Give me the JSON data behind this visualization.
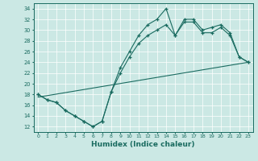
{
  "title": "",
  "xlabel": "Humidex (Indice chaleur)",
  "background_color": "#cbe8e4",
  "line_color": "#1a6b60",
  "xlim": [
    -0.5,
    23.5
  ],
  "ylim": [
    11,
    35
  ],
  "yticks": [
    12,
    14,
    16,
    18,
    20,
    22,
    24,
    26,
    28,
    30,
    32,
    34
  ],
  "xticks": [
    0,
    1,
    2,
    3,
    4,
    5,
    6,
    7,
    8,
    9,
    10,
    11,
    12,
    13,
    14,
    15,
    16,
    17,
    18,
    19,
    20,
    21,
    22,
    23
  ],
  "series1_x": [
    0,
    1,
    2,
    3,
    4,
    5,
    6,
    7,
    8,
    9,
    10,
    11,
    12,
    13,
    14,
    15,
    16,
    17,
    18,
    19,
    20,
    21,
    22,
    23
  ],
  "series1_y": [
    18,
    17,
    16.5,
    15,
    14,
    13,
    12,
    13,
    18.5,
    23,
    26,
    29,
    31,
    32,
    34,
    29,
    32,
    32,
    30,
    30.5,
    31,
    29.5,
    25,
    24
  ],
  "series2_x": [
    0,
    1,
    2,
    3,
    4,
    5,
    6,
    7,
    8,
    9,
    10,
    11,
    12,
    13,
    14,
    15,
    16,
    17,
    18,
    19,
    20,
    21,
    22,
    23
  ],
  "series2_y": [
    18,
    17,
    16.5,
    15,
    14,
    13,
    12,
    13,
    18.5,
    22,
    25,
    27.5,
    29,
    30,
    31,
    29,
    31.5,
    31.5,
    29.5,
    29.5,
    30.5,
    29,
    25,
    24
  ],
  "series3_x": [
    0,
    23
  ],
  "series3_y": [
    17.5,
    24
  ]
}
